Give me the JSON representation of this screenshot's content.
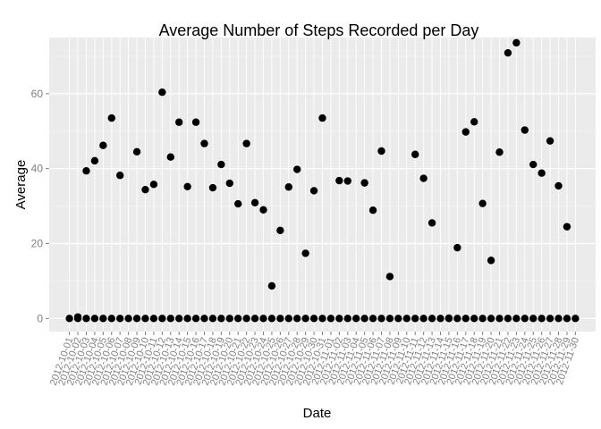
{
  "chart_data": {
    "type": "scatter",
    "title": "Average Number of Steps Recorded per Day",
    "xlabel": "Date",
    "ylabel": "Average",
    "ylim": [
      -3.5,
      75
    ],
    "xlim": [
      "2012-10-01",
      "2012-11-30"
    ],
    "grid": true,
    "legend": "none",
    "yticks": [
      0,
      20,
      40,
      60
    ],
    "x_tick_labels": [
      "2012-10-01",
      "2012-10-02",
      "2012-10-03",
      "2012-10-04",
      "2012-10-05",
      "2012-10-06",
      "2012-10-07",
      "2012-10-08",
      "2012-10-09",
      "2012-10-10",
      "2012-10-11",
      "2012-10-12",
      "2012-10-13",
      "2012-10-14",
      "2012-10-15",
      "2012-10-16",
      "2012-10-17",
      "2012-10-18",
      "2012-10-19",
      "2012-10-20",
      "2012-10-21",
      "2012-10-22",
      "2012-10-23",
      "2012-10-24",
      "2012-10-25",
      "2012-10-26",
      "2012-10-27",
      "2012-10-28",
      "2012-10-29",
      "2012-10-30",
      "2012-10-31",
      "2012-11-01",
      "2012-11-02",
      "2012-11-03",
      "2012-11-04",
      "2012-11-05",
      "2012-11-06",
      "2012-11-07",
      "2012-11-08",
      "2012-11-09",
      "2012-11-10",
      "2012-11-11",
      "2012-11-12",
      "2012-11-13",
      "2012-11-14",
      "2012-11-15",
      "2012-11-16",
      "2012-11-17",
      "2012-11-18",
      "2012-11-19",
      "2012-11-20",
      "2012-11-21",
      "2012-11-22",
      "2012-11-23",
      "2012-11-24",
      "2012-11-25",
      "2012-11-26",
      "2012-11-27",
      "2012-11-28",
      "2012-11-29",
      "2012-11-30"
    ],
    "points": [
      {
        "x": "2012-10-02",
        "y": 0.4
      },
      {
        "x": "2012-10-03",
        "y": 39.4
      },
      {
        "x": "2012-10-04",
        "y": 42.1
      },
      {
        "x": "2012-10-05",
        "y": 46.2
      },
      {
        "x": "2012-10-06",
        "y": 53.5
      },
      {
        "x": "2012-10-07",
        "y": 38.2
      },
      {
        "x": "2012-10-09",
        "y": 44.5
      },
      {
        "x": "2012-10-10",
        "y": 34.4
      },
      {
        "x": "2012-10-11",
        "y": 35.8
      },
      {
        "x": "2012-10-12",
        "y": 60.4
      },
      {
        "x": "2012-10-13",
        "y": 43.1
      },
      {
        "x": "2012-10-14",
        "y": 52.4
      },
      {
        "x": "2012-10-15",
        "y": 35.2
      },
      {
        "x": "2012-10-16",
        "y": 52.4
      },
      {
        "x": "2012-10-17",
        "y": 46.7
      },
      {
        "x": "2012-10-18",
        "y": 34.9
      },
      {
        "x": "2012-10-19",
        "y": 41.1
      },
      {
        "x": "2012-10-20",
        "y": 36.1
      },
      {
        "x": "2012-10-21",
        "y": 30.6
      },
      {
        "x": "2012-10-22",
        "y": 46.7
      },
      {
        "x": "2012-10-23",
        "y": 30.9
      },
      {
        "x": "2012-10-24",
        "y": 29.0
      },
      {
        "x": "2012-10-25",
        "y": 8.7
      },
      {
        "x": "2012-10-26",
        "y": 23.5
      },
      {
        "x": "2012-10-27",
        "y": 35.1
      },
      {
        "x": "2012-10-28",
        "y": 39.8
      },
      {
        "x": "2012-10-29",
        "y": 17.4
      },
      {
        "x": "2012-10-30",
        "y": 34.1
      },
      {
        "x": "2012-10-31",
        "y": 53.5
      },
      {
        "x": "2012-11-02",
        "y": 36.8
      },
      {
        "x": "2012-11-03",
        "y": 36.7
      },
      {
        "x": "2012-11-05",
        "y": 36.2
      },
      {
        "x": "2012-11-06",
        "y": 28.9
      },
      {
        "x": "2012-11-07",
        "y": 44.7
      },
      {
        "x": "2012-11-08",
        "y": 11.2
      },
      {
        "x": "2012-11-11",
        "y": 43.8
      },
      {
        "x": "2012-11-12",
        "y": 37.4
      },
      {
        "x": "2012-11-13",
        "y": 25.5
      },
      {
        "x": "2012-11-15",
        "y": 0.1
      },
      {
        "x": "2012-11-16",
        "y": 18.9
      },
      {
        "x": "2012-11-17",
        "y": 49.8
      },
      {
        "x": "2012-11-18",
        "y": 52.5
      },
      {
        "x": "2012-11-19",
        "y": 30.7
      },
      {
        "x": "2012-11-20",
        "y": 15.5
      },
      {
        "x": "2012-11-21",
        "y": 44.4
      },
      {
        "x": "2012-11-22",
        "y": 70.9
      },
      {
        "x": "2012-11-23",
        "y": 73.6
      },
      {
        "x": "2012-11-24",
        "y": 50.3
      },
      {
        "x": "2012-11-25",
        "y": 41.1
      },
      {
        "x": "2012-11-26",
        "y": 38.8
      },
      {
        "x": "2012-11-27",
        "y": 47.4
      },
      {
        "x": "2012-11-28",
        "y": 35.4
      },
      {
        "x": "2012-11-29",
        "y": 24.5
      }
    ],
    "zero_points_all_dates": true
  },
  "colors": {
    "panel_background": "#ebebeb",
    "grid_major": "#ffffff",
    "grid_minor": "#f5f5f5",
    "point": "#000000",
    "tick_text": "#7f7f7f"
  }
}
